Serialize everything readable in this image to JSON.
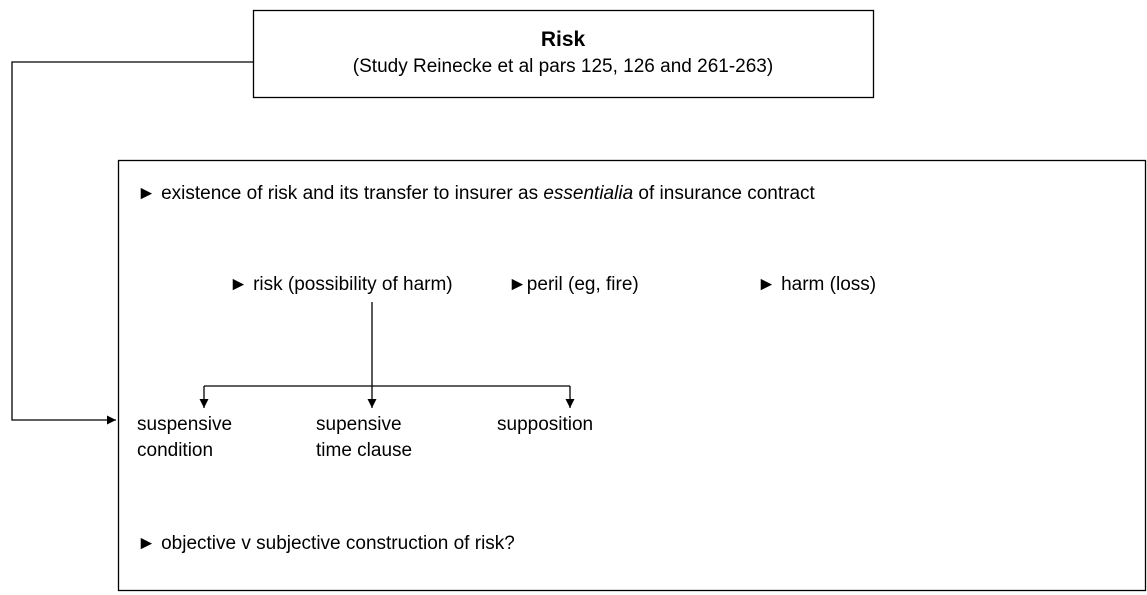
{
  "header": {
    "title": "Risk",
    "subtitle": "(Study Reinecke et al pars 125, 126 and 261-263)"
  },
  "points": {
    "first": {
      "before": "► existence of risk and its transfer to insurer as ",
      "emphasis": "essentialia",
      "after": " of insurance contract"
    },
    "elements": [
      "► risk (possibility of harm)",
      "►peril (eg, fire)",
      "► harm (loss)"
    ],
    "branches": [
      {
        "lines": [
          "suspensive",
          "condition"
        ]
      },
      {
        "lines": [
          "supensive",
          "time clause"
        ]
      },
      {
        "lines": [
          "supposition"
        ]
      }
    ],
    "last": "► objective v subjective construction of risk?"
  }
}
